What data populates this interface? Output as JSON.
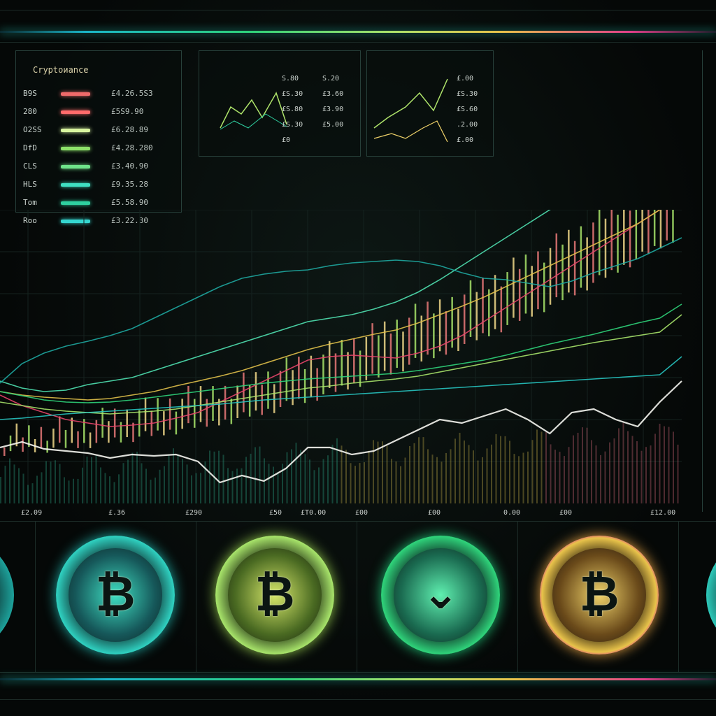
{
  "legend": {
    "title": "Cryptoиance",
    "rows": [
      {
        "code": "B9S",
        "value": "£4.26.5S3",
        "color": "#f06a6a"
      },
      {
        "code": "280",
        "value": "£5S9.90",
        "color": "#ff6b6b"
      },
      {
        "code": "O2SS",
        "value": "£6.28.89",
        "color": "#d9f5a0"
      },
      {
        "code": "DfD",
        "value": "£4.28.280",
        "color": "#8de26a"
      },
      {
        "code": "CLS",
        "value": "£3.40.90",
        "color": "#6fe38a"
      },
      {
        "code": "HLS",
        "value": "£9.35.28",
        "color": "#3fe0c3"
      },
      {
        "code": "Tom",
        "value": "£5.58.90",
        "color": "#2fd0a0"
      },
      {
        "code": "Roo",
        "value": "£3.22.30",
        "color": "#35d7d0"
      }
    ]
  },
  "mini_panels": {
    "a_labels": [
      "S.80",
      "£S.30",
      "£S.80",
      "£S.30",
      "£0",
      "S.20",
      "£3.60",
      "£3.90",
      "£5.00"
    ],
    "b_labels": [
      "£.00",
      "£S.30",
      "£S.60",
      ".2.00",
      "£.00"
    ]
  },
  "chart_data": {
    "type": "line",
    "x_ticks": [
      "£2.09",
      "£.36",
      "£290",
      "£50",
      "£T0.00",
      "£00",
      "£00",
      "0.00",
      "£00",
      "£12.00"
    ],
    "candles": [
      {
        "x": 6,
        "h": 0.82
      },
      {
        "x": 12,
        "h": 0.45
      },
      {
        "x": 18,
        "h": 0.88
      },
      {
        "x": 24,
        "h": 0.62
      },
      {
        "x": 30,
        "h": 0.55
      },
      {
        "x": 36,
        "h": 0.9
      },
      {
        "x": 42,
        "h": 0.7
      },
      {
        "x": 48,
        "h": 0.58
      },
      {
        "x": 54,
        "h": 0.64
      },
      {
        "x": 60,
        "h": 0.52
      },
      {
        "x": 66,
        "h": 0.5
      },
      {
        "x": 72,
        "h": 0.55
      },
      {
        "x": 78,
        "h": 0.48
      },
      {
        "x": 84,
        "h": 0.53
      },
      {
        "x": 90,
        "h": 0.5
      },
      {
        "x": 96,
        "h": 0.46
      }
    ],
    "series": [
      {
        "color": "#f5f5f0",
        "values": [
          640,
          632,
          642,
          645,
          648,
          655,
          650,
          652,
          650,
          660,
          690,
          680,
          688,
          670,
          640,
          640,
          650,
          645,
          630,
          615,
          600,
          605,
          595,
          585,
          600,
          620,
          590,
          585,
          600,
          610,
          575,
          545
        ]
      },
      {
        "color": "#e8456b",
        "values": [
          565,
          580,
          590,
          600,
          605,
          610,
          608,
          605,
          598,
          590,
          575,
          560,
          545,
          530,
          515,
          510,
          508,
          510,
          512,
          505,
          495,
          480,
          460,
          440,
          420,
          400,
          380,
          360,
          340,
          320,
          300,
          275
        ]
      },
      {
        "color": "#e0c04a",
        "values": [
          560,
          565,
          568,
          570,
          572,
          570,
          565,
          560,
          552,
          545,
          538,
          530,
          520,
          510,
          500,
          492,
          485,
          478,
          472,
          462,
          450,
          438,
          425,
          410,
          395,
          380,
          365,
          350,
          335,
          320,
          300,
          248
        ]
      },
      {
        "color": "#4fe0b0",
        "values": [
          545,
          555,
          560,
          558,
          550,
          545,
          540,
          530,
          520,
          510,
          500,
          490,
          480,
          470,
          460,
          455,
          450,
          442,
          432,
          418,
          400,
          380,
          360,
          340,
          320,
          300,
          280,
          262,
          245,
          228,
          212,
          180
        ]
      },
      {
        "color": "#2fd37a",
        "values": [
          560,
          566,
          572,
          575,
          576,
          575,
          572,
          568,
          564,
          560,
          556,
          552,
          548,
          545,
          542,
          540,
          538,
          536,
          534,
          530,
          525,
          520,
          515,
          508,
          500,
          492,
          485,
          478,
          470,
          462,
          455,
          435
        ]
      },
      {
        "color": "#a7e36a",
        "values": [
          575,
          580,
          585,
          588,
          590,
          592,
          590,
          588,
          585,
          580,
          575,
          570,
          565,
          560,
          555,
          552,
          548,
          545,
          542,
          538,
          532,
          526,
          520,
          514,
          508,
          502,
          496,
          490,
          485,
          480,
          475,
          450
        ]
      },
      {
        "color": "#27c4c0",
        "values": [
          600,
          598,
          595,
          592,
          590,
          588,
          586,
          584,
          582,
          580,
          578,
          575,
          572,
          570,
          568,
          566,
          564,
          562,
          560,
          558,
          556,
          554,
          552,
          550,
          548,
          546,
          544,
          542,
          540,
          538,
          536,
          510
        ]
      },
      {
        "color": "#1ea7a0",
        "values": [
          548,
          520,
          505,
          495,
          488,
          480,
          470,
          455,
          440,
          425,
          410,
          398,
          392,
          388,
          386,
          380,
          376,
          374,
          372,
          374,
          380,
          390,
          398,
          400,
          405,
          410,
          402,
          390,
          380,
          370,
          355,
          340
        ]
      }
    ],
    "volume": {
      "color": "#a7e36a",
      "count": 150
    },
    "bars": {
      "count": 110
    }
  }
}
